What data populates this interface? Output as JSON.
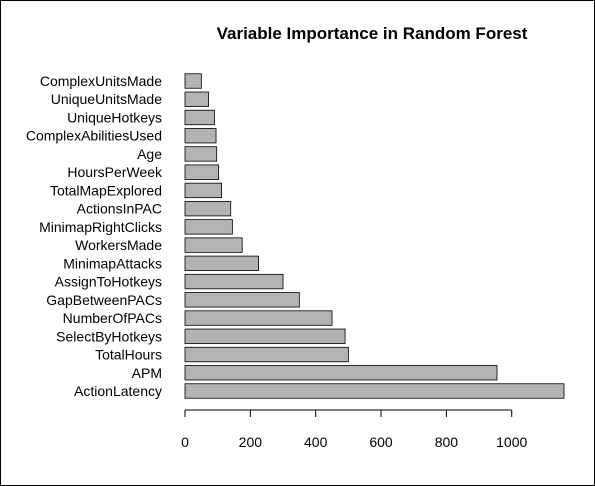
{
  "chart_data": {
    "type": "bar",
    "orientation": "horizontal",
    "title": "Variable Importance in Random Forest",
    "categories": [
      "ActionLatency",
      "APM",
      "TotalHours",
      "SelectByHotkeys",
      "NumberOfPACs",
      "GapBetweenPACs",
      "AssignToHotkeys",
      "MinimapAttacks",
      "WorkersMade",
      "MinimapRightClicks",
      "ActionsInPAC",
      "TotalMapExplored",
      "HoursPerWeek",
      "Age",
      "ComplexAbilitiesUsed",
      "UniqueHotkeys",
      "UniqueUnitsMade",
      "ComplexUnitsMade"
    ],
    "values": [
      1160,
      955,
      500,
      490,
      450,
      350,
      300,
      225,
      175,
      145,
      140,
      112,
      103,
      97,
      95,
      90,
      72,
      50
    ],
    "x_ticks": [
      0,
      200,
      400,
      600,
      800,
      1000
    ],
    "xlim": [
      0,
      1160
    ],
    "bar_color": "#b3b3b3",
    "grid": false
  }
}
